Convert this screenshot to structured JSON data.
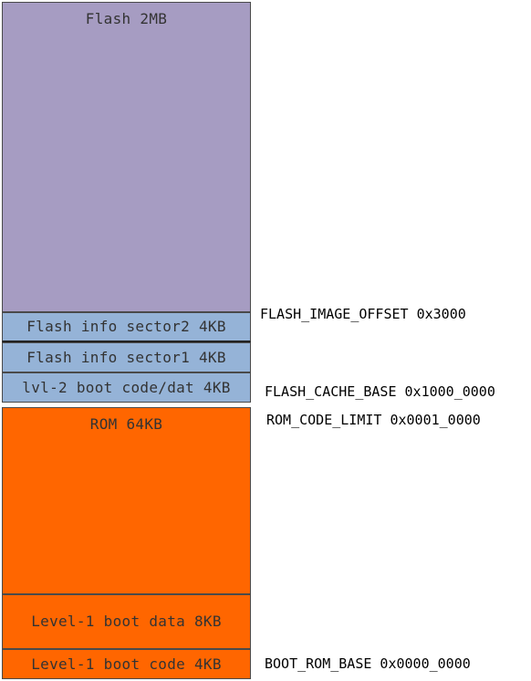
{
  "memory_map": {
    "flash": {
      "label": "Flash 2MB",
      "color": "#a69cc2"
    },
    "flash_info_sector2": {
      "label": "Flash info sector2 4KB",
      "color": "#95b3d7"
    },
    "flash_info_sector1": {
      "label": "Flash info sector1 4KB",
      "color": "#95b3d7"
    },
    "lvl2_boot": {
      "label": "lvl-2 boot code/dat 4KB",
      "color": "#95b3d7"
    },
    "rom": {
      "label": "ROM 64KB",
      "color": "#ff6600"
    },
    "level1_boot_data": {
      "label": "Level-1 boot data 8KB",
      "color": "#ff6600"
    },
    "level1_boot_code": {
      "label": "Level-1 boot code 4KB",
      "color": "#ff6600"
    }
  },
  "addresses": {
    "flash_image_offset": "FLASH_IMAGE_OFFSET 0x3000",
    "flash_cache_base": "FLASH_CACHE_BASE 0x1000_0000",
    "rom_code_limit": "ROM_CODE_LIMIT 0x0001_0000",
    "boot_rom_base": "BOOT_ROM_BASE 0x0000_0000"
  }
}
